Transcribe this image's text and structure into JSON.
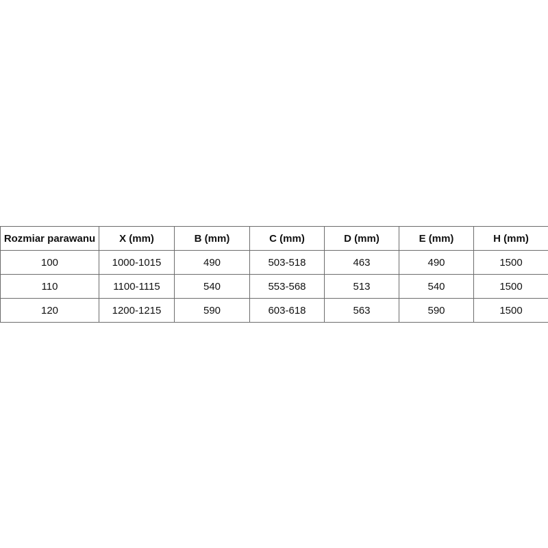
{
  "table": {
    "headers": [
      "Rozmiar parawanu",
      "X (mm)",
      "B (mm)",
      "C (mm)",
      "D (mm)",
      "E (mm)",
      "H (mm)"
    ],
    "rows": [
      [
        "100",
        "1000-1015",
        "490",
        "503-518",
        "463",
        "490",
        "1500"
      ],
      [
        "110",
        "1100-1115",
        "540",
        "553-568",
        "513",
        "540",
        "1500"
      ],
      [
        "120",
        "1200-1215",
        "590",
        "603-618",
        "563",
        "590",
        "1500"
      ]
    ]
  }
}
